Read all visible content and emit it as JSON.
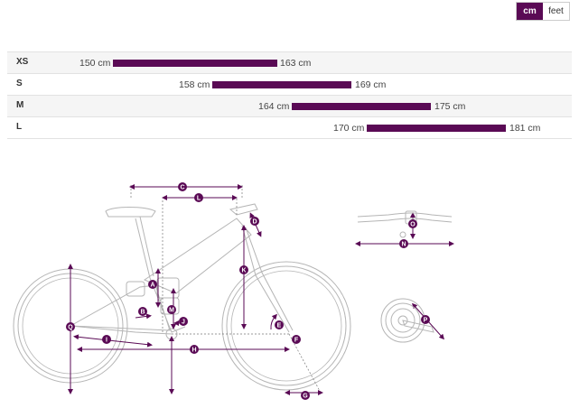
{
  "unit_toggle": {
    "options": [
      "cm",
      "feet"
    ],
    "active": "cm"
  },
  "sizes": [
    {
      "name": "XS",
      "min": "150 cm",
      "max": "163 cm"
    },
    {
      "name": "S",
      "min": "158 cm",
      "max": "169 cm"
    },
    {
      "name": "M",
      "min": "164 cm",
      "max": "175 cm"
    },
    {
      "name": "L",
      "min": "170 cm",
      "max": "181 cm"
    }
  ],
  "geometry_labels": {
    "a": "A",
    "b": "B",
    "c": "C",
    "d": "D",
    "e": "E",
    "f": "F",
    "g": "G",
    "h": "H",
    "i": "I",
    "j": "J",
    "k": "K",
    "l": "L",
    "m": "M",
    "n": "N",
    "o": "O",
    "p": "P",
    "q": "Q"
  },
  "colors": {
    "accent": "#5a0a55",
    "line": "#b5b5b5"
  }
}
